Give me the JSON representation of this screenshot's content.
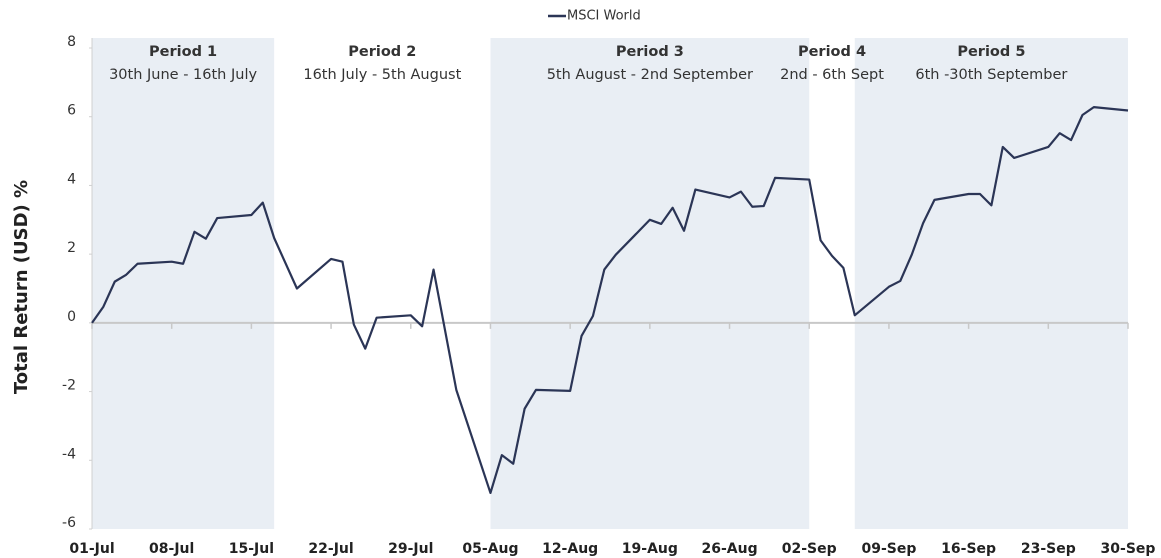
{
  "chart_data": {
    "type": "line",
    "y_axis_label": "Total Return (USD) %",
    "xlim": [
      0,
      91
    ],
    "ylim": [
      -6,
      8
    ],
    "yticks": [
      -6,
      -4,
      -2,
      0,
      2,
      4,
      6,
      8
    ],
    "xticks": [
      {
        "value": 0,
        "label": "01-Jul"
      },
      {
        "value": 7,
        "label": "08-Jul"
      },
      {
        "value": 14,
        "label": "15-Jul"
      },
      {
        "value": 21,
        "label": "22-Jul"
      },
      {
        "value": 28,
        "label": "29-Jul"
      },
      {
        "value": 35,
        "label": "05-Aug"
      },
      {
        "value": 42,
        "label": "12-Aug"
      },
      {
        "value": 49,
        "label": "19-Aug"
      },
      {
        "value": 56,
        "label": "26-Aug"
      },
      {
        "value": 63,
        "label": "02-Sep"
      },
      {
        "value": 70,
        "label": "09-Sep"
      },
      {
        "value": 77,
        "label": "16-Sep"
      },
      {
        "value": 84,
        "label": "23-Sep"
      },
      {
        "value": 91,
        "label": "30-Sep"
      }
    ],
    "periods": [
      {
        "name": "Period 1",
        "dates": "30th June - 16th July",
        "start": 0,
        "end": 16,
        "shaded": true
      },
      {
        "name": "Period 2",
        "dates": "16th July - 5th August",
        "start": 16,
        "end": 35,
        "shaded": false
      },
      {
        "name": "Period 3",
        "dates": "5th August - 2nd September",
        "start": 35,
        "end": 63,
        "shaded": true
      },
      {
        "name": "Period 4",
        "dates": "2nd - 6th Sept",
        "start": 63,
        "end": 67,
        "shaded": false
      },
      {
        "name": "Period 5",
        "dates": "6th -30th September",
        "start": 67,
        "end": 91,
        "shaded": true
      }
    ],
    "shade_color": "#e9eef4",
    "x": [
      0,
      1,
      2,
      3,
      4,
      7,
      8,
      9,
      10,
      11,
      14,
      15,
      16,
      18,
      21,
      22,
      23,
      24,
      25,
      28,
      29,
      30,
      31,
      32,
      35,
      36,
      37,
      38,
      39,
      42,
      43,
      44,
      45,
      46,
      49,
      50,
      51,
      52,
      53,
      56,
      57,
      58,
      59,
      60,
      63,
      64,
      65,
      66,
      67,
      70,
      71,
      72,
      73,
      74,
      77,
      78,
      79,
      80,
      81,
      84,
      85,
      86,
      87,
      88,
      91
    ],
    "series": [
      {
        "name": "MSCI World",
        "color": "#2b3556",
        "values": [
          0,
          0.47,
          1.2,
          1.4,
          1.72,
          1.78,
          1.72,
          2.65,
          2.45,
          3.05,
          3.14,
          3.5,
          2.47,
          1.0,
          1.86,
          1.78,
          -0.05,
          -0.75,
          0.15,
          0.22,
          -0.1,
          1.55,
          -0.2,
          -1.95,
          -4.95,
          -3.85,
          -4.1,
          -2.5,
          -1.95,
          -1.98,
          -0.38,
          0.2,
          1.55,
          1.98,
          3.0,
          2.88,
          3.35,
          2.68,
          3.88,
          3.65,
          3.82,
          3.38,
          3.4,
          4.22,
          4.17,
          2.4,
          1.95,
          1.6,
          0.22,
          1.05,
          1.22,
          1.98,
          2.9,
          3.58,
          3.75,
          3.75,
          3.42,
          5.12,
          4.8,
          5.12,
          5.52,
          5.32,
          6.05,
          6.28,
          6.18
        ]
      }
    ]
  }
}
